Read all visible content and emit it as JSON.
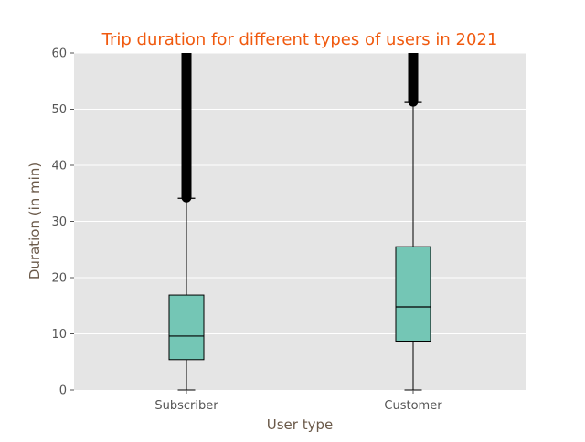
{
  "chart_data": {
    "type": "box",
    "title": "Trip duration for different types of users in 2021",
    "xlabel": "User type",
    "ylabel": "Duration (in min)",
    "ylim": [
      0,
      60
    ],
    "yticks": [
      0,
      10,
      20,
      30,
      40,
      50,
      60
    ],
    "grid": true,
    "categories": [
      "Subscriber",
      "Customer"
    ],
    "boxes": [
      {
        "category": "Subscriber",
        "whisker_low": 0,
        "q1": 5.4,
        "median": 9.6,
        "q3": 16.9,
        "whisker_high": 34.1,
        "outliers_from": 34.1,
        "outliers_to": 60
      },
      {
        "category": "Customer",
        "whisker_low": 0,
        "q1": 8.7,
        "median": 14.8,
        "q3": 25.5,
        "whisker_high": 51.2,
        "outliers_from": 51.2,
        "outliers_to": 60
      }
    ],
    "colors": {
      "box_fill": "#74c6b5",
      "plot_bg": "#e5e5e5",
      "title": "#f05a0f",
      "axis_label": "#6b5a4a",
      "tick_label": "#555555"
    }
  }
}
